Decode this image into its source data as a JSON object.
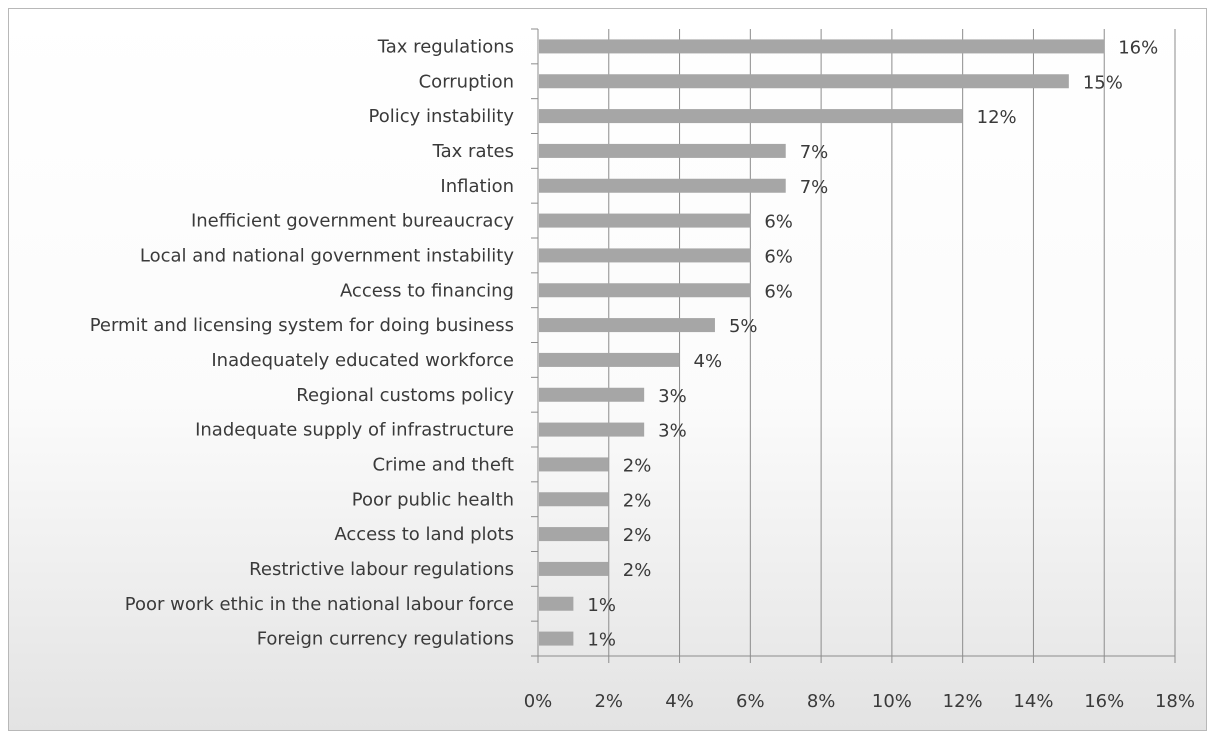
{
  "chart_data": {
    "type": "bar",
    "orientation": "horizontal",
    "categories": [
      "Tax regulations",
      "Corruption",
      "Policy instability",
      "Tax rates",
      "Inflation",
      "Inefficient government bureaucracy",
      "Local and national government instability",
      "Access to financing",
      "Permit and licensing system for doing business",
      "Inadequately educated workforce",
      "Regional customs policy",
      "Inadequate supply of infrastructure",
      "Crime and theft",
      "Poor public health",
      "Access to land plots",
      "Restrictive labour regulations",
      "Poor work ethic in the national labour force",
      "Foreign currency regulations"
    ],
    "values": [
      16,
      15,
      12,
      7,
      7,
      6,
      6,
      6,
      5,
      4,
      3,
      3,
      2,
      2,
      2,
      2,
      1,
      1
    ],
    "data_labels": [
      "16%",
      "15%",
      "12%",
      "7%",
      "7%",
      "6%",
      "6%",
      "6%",
      "5%",
      "4%",
      "3%",
      "3%",
      "2%",
      "2%",
      "2%",
      "2%",
      "1%",
      "1%"
    ],
    "xlim": [
      0,
      18
    ],
    "x_ticks": [
      "0%",
      "2%",
      "4%",
      "6%",
      "8%",
      "10%",
      "12%",
      "14%",
      "16%",
      "18%"
    ],
    "title": "",
    "xlabel": "",
    "ylabel": "",
    "grid": "vertical",
    "legend": "none",
    "bar_color": "#a6a6a6",
    "grid_color": "#8c8c8c",
    "text_color": "#3a3a3a"
  }
}
